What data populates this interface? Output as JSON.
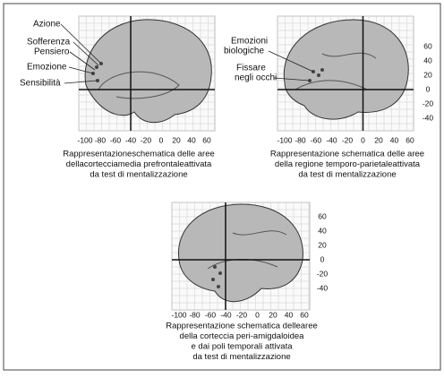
{
  "panels": [
    {
      "labels": [
        "Azione",
        "Sofferenza",
        "Pensiero",
        "Emozione",
        "Sensibilità"
      ],
      "xticks": [
        -100,
        -80,
        -60,
        -40,
        -20,
        0,
        20,
        40,
        60
      ],
      "caption": [
        "Rappresentazioneschematica delle aree",
        "dellacortecciamedia prefrontaleattivata",
        "da test di mentalizzazione"
      ]
    },
    {
      "labels": [
        "Emozioni",
        "biologiche",
        "Fissare",
        "negli occhi"
      ],
      "xticks": [
        -100,
        -80,
        -60,
        -40,
        -20,
        0,
        20,
        40,
        60
      ],
      "yticks": [
        60,
        40,
        20,
        0,
        -20,
        -40
      ],
      "caption": [
        "Rappresentazione schematica delle aree",
        "della regione temporo-parietaleattivata",
        "da test di mentalizzazione"
      ]
    },
    {
      "xticks": [
        -100,
        -80,
        -60,
        -40,
        -20,
        0,
        20,
        40,
        60
      ],
      "yticks": [
        60,
        40,
        20,
        0,
        -20,
        -40
      ],
      "caption": [
        "Rappresentazione schematica dellearee",
        "della corteccia peri-amigdaloidea",
        "e dai poli temporali attivata",
        "da test di mentalizzazione"
      ]
    }
  ]
}
